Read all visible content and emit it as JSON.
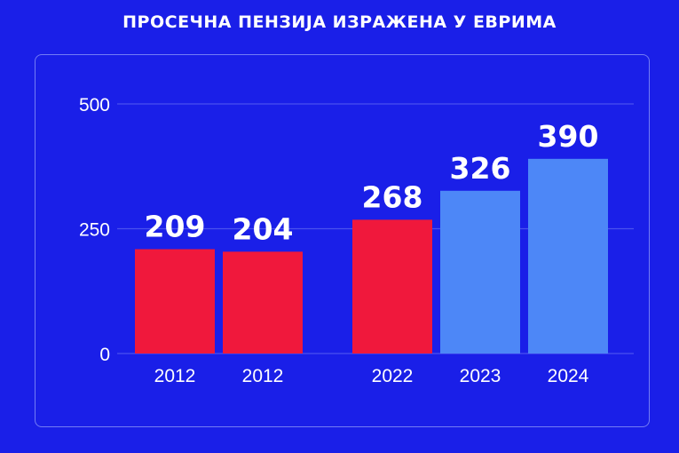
{
  "chart_data": {
    "type": "bar",
    "title": "ПРОСЕЧНА ПЕНЗИЈА ИЗРАЖЕНА У ЕВРИМА",
    "categories": [
      "2012",
      "2012",
      "2022",
      "2023",
      "2024"
    ],
    "values": [
      209,
      204,
      268,
      326,
      390
    ],
    "value_labels": [
      "209",
      "204",
      "268",
      "326",
      "390"
    ],
    "bar_colors": [
      "#f0183c",
      "#f0183c",
      "#f0183c",
      "#4d87f7",
      "#4d87f7"
    ],
    "ylim": [
      0,
      500
    ],
    "yticks": [
      0,
      250,
      500
    ],
    "ytick_labels": [
      "0",
      "250",
      "500"
    ],
    "xlabel": "",
    "ylabel": "",
    "grid": true,
    "legend": "none"
  },
  "colors": {
    "background": "#1a1fe8",
    "text": "#ffffff",
    "gridline": "#4a52ee"
  }
}
